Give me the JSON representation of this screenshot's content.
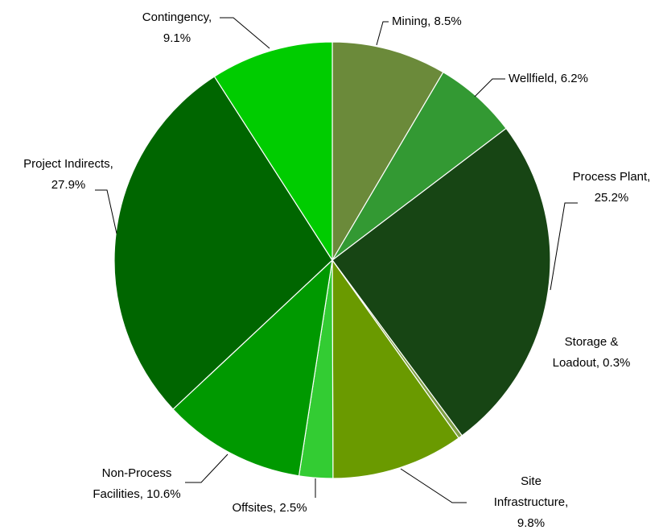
{
  "chart_data": {
    "type": "pie",
    "values": [
      8.5,
      6.2,
      25.2,
      0.3,
      9.8,
      2.5,
      10.6,
      27.9,
      9.1
    ],
    "value_labels": [
      [
        "Mining, 8.5%"
      ],
      [
        "Wellfield, 6.2%"
      ],
      [
        "Process Plant,",
        "25.2%"
      ],
      [
        "Storage &",
        "Loadout, 0.3%"
      ],
      [
        "Site",
        "Infrastructure,",
        "9.8%"
      ],
      [
        "Offsites, 2.5%"
      ],
      [
        "Non-Process",
        "Facilities, 10.6%"
      ],
      [
        "Project Indirects,",
        "27.9%"
      ],
      [
        "Contingency,",
        "9.1%"
      ]
    ],
    "colors": [
      "#6b8a3a",
      "#339933",
      "#174514",
      "#7f9f45",
      "#6a9a00",
      "#33cc33",
      "#009900",
      "#006600",
      "#00cc00"
    ]
  }
}
